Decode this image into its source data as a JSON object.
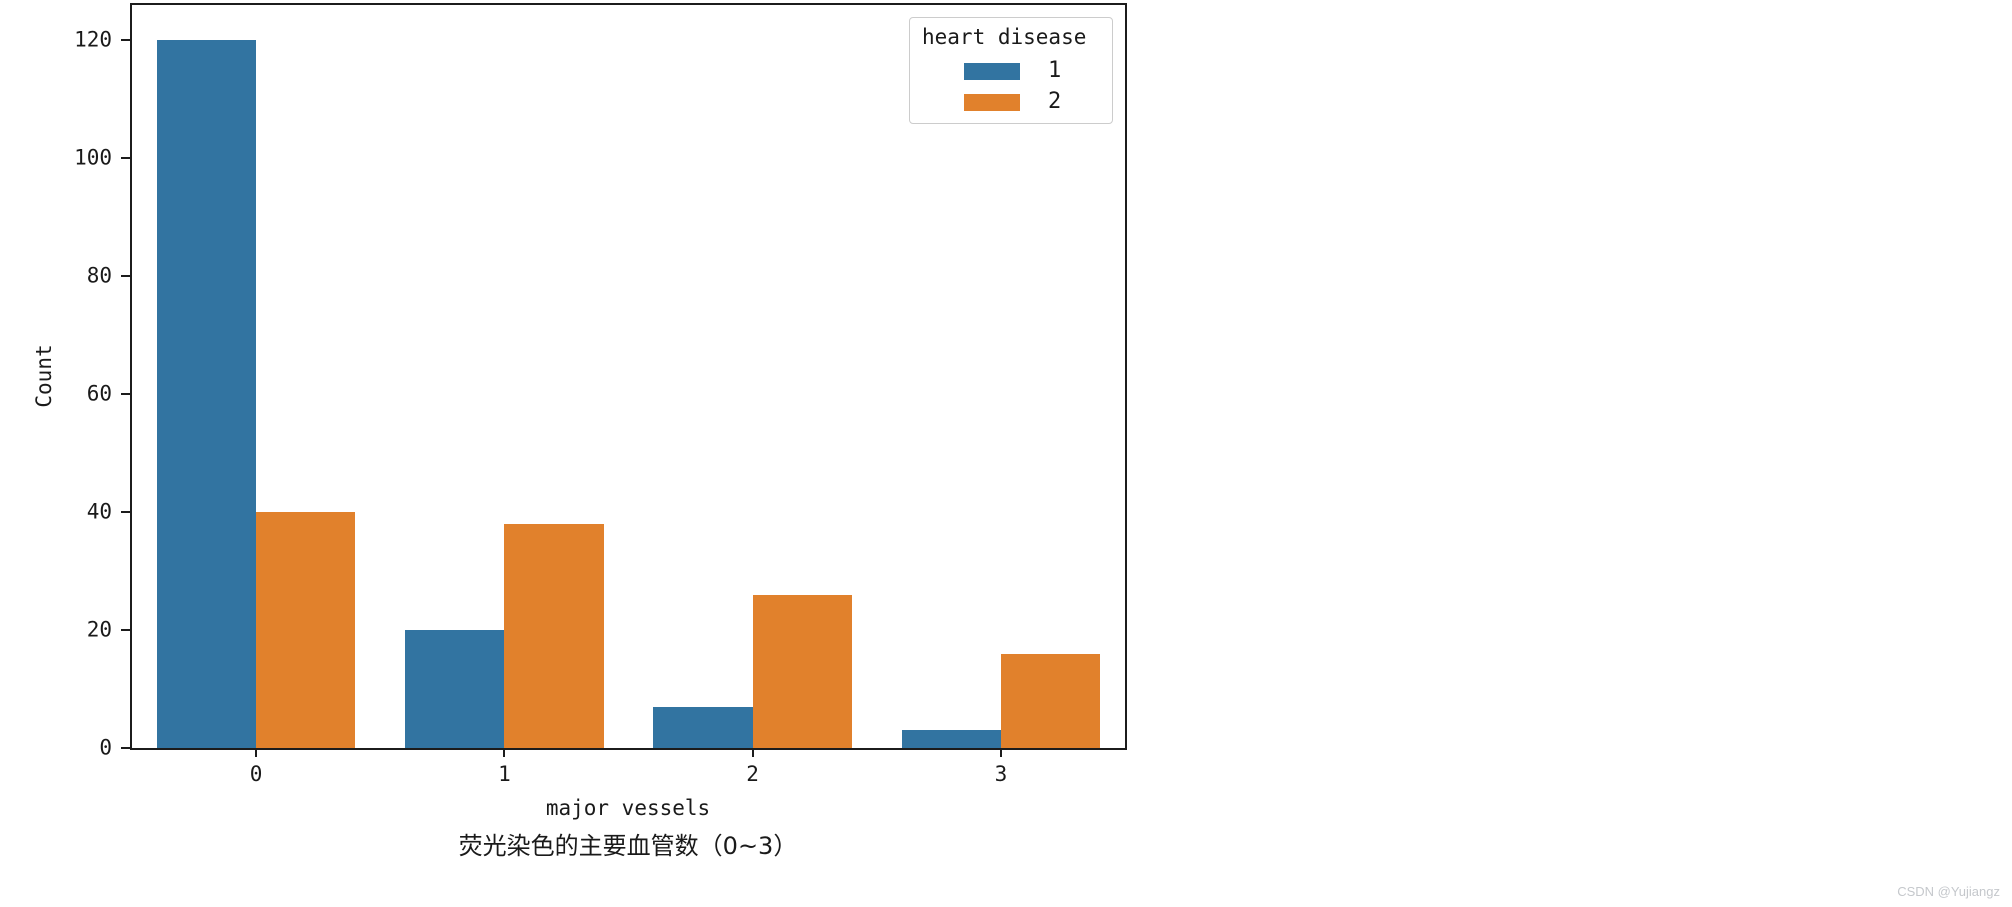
{
  "watermark": "CSDN @Yujiangz",
  "chart_data": {
    "type": "bar",
    "categories": [
      "0",
      "1",
      "2",
      "3"
    ],
    "series": [
      {
        "name": "1",
        "color": "#3274a1",
        "values": [
          120,
          20,
          7,
          3
        ]
      },
      {
        "name": "2",
        "color": "#e1812c",
        "values": [
          40,
          38,
          26,
          16
        ]
      }
    ],
    "legend": {
      "title": "heart disease",
      "position": "upper right"
    },
    "xlabel": "major vessels",
    "xlabel_cn": "荧光染色的主要血管数（0~3）",
    "ylabel": "Count",
    "yticks": [
      0,
      20,
      40,
      60,
      80,
      100,
      120
    ],
    "ylim": [
      0,
      126
    ],
    "grid": false,
    "bar_group_fraction": 0.8,
    "axis_color": "#1c1c1c",
    "text_color": "#1a1a1a",
    "legend_border_color": "#cccccc"
  }
}
